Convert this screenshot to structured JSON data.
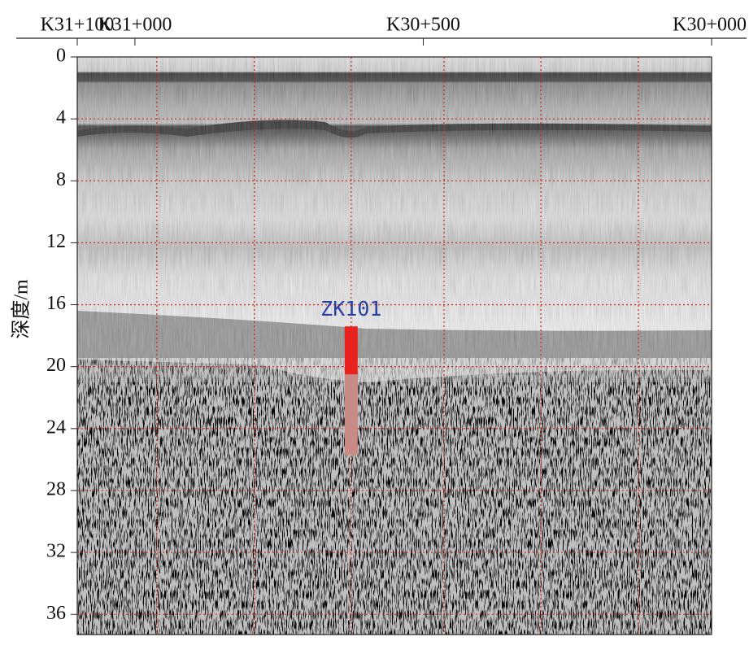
{
  "chart_data": {
    "type": "radargram",
    "ylabel": "深度/m",
    "xlim": [
      31100,
      30000
    ],
    "xticks": [
      {
        "value": 31100,
        "label": "K31+100"
      },
      {
        "value": 31000,
        "label": "K31+000"
      },
      {
        "value": 30500,
        "label": "K30+500"
      },
      {
        "value": 30000,
        "label": "K30+000"
      }
    ],
    "ylim": [
      0,
      37.3
    ],
    "yticks": [
      0,
      4,
      8,
      12,
      16,
      20,
      24,
      28,
      32,
      36
    ],
    "xgrid": [
      30962,
      30793,
      30625,
      30464,
      30296,
      30127
    ],
    "grid": true,
    "grid_color": "#d0201c",
    "boreholes": [
      {
        "name": "ZK101",
        "x": 30625,
        "top": 17.4,
        "interface": 20.5,
        "bottom": 25.7,
        "upper_color": "#e8231e",
        "lower_color": "#c98a88",
        "label_color": "#2b3fa0"
      }
    ]
  }
}
